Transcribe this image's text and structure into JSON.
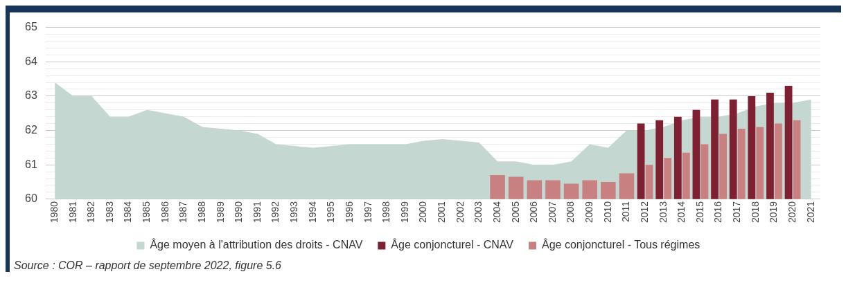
{
  "chart_data": {
    "type": "bar",
    "categories": [
      "1980",
      "1981",
      "1982",
      "1983",
      "1984",
      "1985",
      "1986",
      "1987",
      "1988",
      "1989",
      "1990",
      "1991",
      "1992",
      "1993",
      "1994",
      "1995",
      "1996",
      "1997",
      "1998",
      "1999",
      "2000",
      "2001",
      "2002",
      "2003",
      "2004",
      "2005",
      "2006",
      "2007",
      "2008",
      "2009",
      "2010",
      "2011",
      "2012",
      "2013",
      "2014",
      "2015",
      "2016",
      "2017",
      "2018",
      "2019",
      "2020",
      "2021"
    ],
    "series": [
      {
        "name": "Âge moyen à l'attribution des droits - CNAV",
        "type": "area",
        "color": "#c4d7d0",
        "values": [
          63.4,
          63.0,
          63.0,
          62.4,
          62.4,
          62.6,
          62.5,
          62.4,
          62.1,
          62.05,
          62.0,
          61.9,
          61.6,
          61.55,
          61.5,
          61.55,
          61.6,
          61.6,
          61.6,
          61.6,
          61.7,
          61.75,
          61.7,
          61.65,
          61.1,
          61.1,
          61.0,
          61.0,
          61.1,
          61.6,
          61.5,
          62.0,
          62.0,
          62.1,
          62.3,
          62.4,
          62.4,
          62.5,
          62.7,
          62.8,
          62.8,
          62.9
        ]
      },
      {
        "name": "Âge conjoncturel - CNAV",
        "type": "bar",
        "color": "#7f1f32",
        "values": [
          null,
          null,
          null,
          null,
          null,
          null,
          null,
          null,
          null,
          null,
          null,
          null,
          null,
          null,
          null,
          null,
          null,
          null,
          null,
          null,
          null,
          null,
          null,
          null,
          null,
          null,
          null,
          null,
          null,
          null,
          null,
          null,
          62.2,
          62.3,
          62.4,
          62.6,
          62.9,
          62.9,
          63.0,
          63.1,
          63.3,
          null
        ]
      },
      {
        "name": "Âge conjoncturel - Tous régimes",
        "type": "bar",
        "color": "#c88080",
        "values": [
          null,
          null,
          null,
          null,
          null,
          null,
          null,
          null,
          null,
          null,
          null,
          null,
          null,
          null,
          null,
          null,
          null,
          null,
          null,
          null,
          null,
          null,
          null,
          null,
          60.7,
          60.65,
          60.55,
          60.55,
          60.45,
          60.55,
          60.5,
          60.75,
          61.0,
          61.2,
          61.35,
          61.6,
          61.9,
          62.05,
          62.1,
          62.2,
          62.3,
          null
        ]
      }
    ],
    "ylim": [
      60,
      65
    ],
    "yticks": [
      60,
      {
        "value": 60.2,
        "label": null
      },
      {
        "value": 60.4,
        "label": null
      },
      {
        "value": 60.6,
        "label": null
      },
      {
        "value": 60.8,
        "label": null
      },
      61,
      {
        "value": 61.2,
        "label": null
      },
      {
        "value": 61.4,
        "label": null
      },
      {
        "value": 61.6,
        "label": null
      },
      {
        "value": 61.8,
        "label": null
      },
      62,
      {
        "value": 62.2,
        "label": null
      },
      {
        "value": 62.4,
        "label": null
      },
      {
        "value": 62.6,
        "label": null
      },
      {
        "value": 62.8,
        "label": null
      },
      63,
      {
        "value": 63.2,
        "label": null
      },
      {
        "value": 63.4,
        "label": null
      },
      {
        "value": 63.6,
        "label": null
      },
      {
        "value": 63.8,
        "label": null
      },
      64,
      {
        "value": 64.2,
        "label": null
      },
      {
        "value": 64.4,
        "label": null
      },
      {
        "value": 64.6,
        "label": null
      },
      {
        "value": 64.8,
        "label": null
      },
      65
    ],
    "grid": "y",
    "legend": "bottom",
    "annotations": [
      "Source : COR – rapport de septembre 2022, figure 5.6"
    ]
  }
}
